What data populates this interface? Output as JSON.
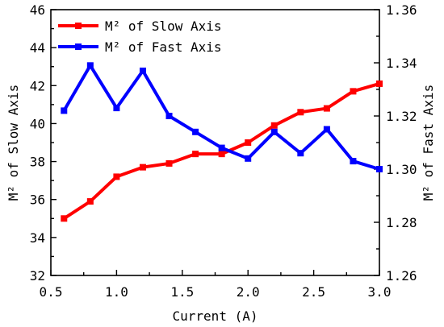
{
  "chart_data": {
    "type": "line",
    "x": [
      0.6,
      0.8,
      1.0,
      1.2,
      1.4,
      1.6,
      1.8,
      2.0,
      2.2,
      2.4,
      2.6,
      2.8,
      3.0
    ],
    "xlabel": "Current (A)",
    "xlim": [
      0.5,
      3.0
    ],
    "xticks": [
      "0.5",
      "1.0",
      "1.5",
      "2.0",
      "2.5",
      "3.0"
    ],
    "left_axis": {
      "label": "M² of Slow Axis",
      "ylim": [
        32,
        46
      ],
      "ticks": [
        "32",
        "34",
        "36",
        "38",
        "40",
        "42",
        "44",
        "46"
      ]
    },
    "right_axis": {
      "label": "M² of Fast Axis",
      "ylim": [
        1.26,
        1.36
      ],
      "ticks": [
        "1.26",
        "1.28",
        "1.30",
        "1.32",
        "1.34",
        "1.36"
      ]
    },
    "series": [
      {
        "name": "M² of Slow Axis",
        "axis": "left",
        "color": "#ff0000",
        "marker": "square",
        "values": [
          35.0,
          35.9,
          37.2,
          37.7,
          37.9,
          38.4,
          38.4,
          39.0,
          39.9,
          40.6,
          40.8,
          41.7,
          42.1
        ]
      },
      {
        "name": "M² of Fast Axis",
        "axis": "right",
        "color": "#0000ff",
        "marker": "square",
        "values": [
          1.322,
          1.339,
          1.323,
          1.337,
          1.32,
          1.314,
          1.308,
          1.304,
          1.314,
          1.306,
          1.315,
          1.303,
          1.3
        ]
      }
    ],
    "legend_position": "top-left",
    "grid": false
  }
}
